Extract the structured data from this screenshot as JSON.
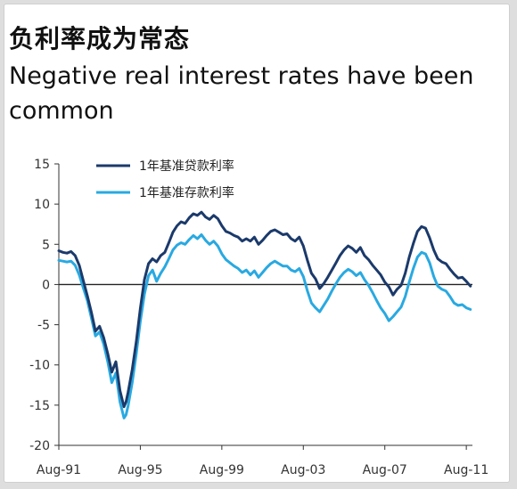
{
  "header": {
    "title_cn": "负利率成为常态",
    "title_en": "Negative real interest rates have been common"
  },
  "chart_data": {
    "type": "line",
    "title": "负利率成为常态",
    "subtitle": "Negative real interest rates have been common",
    "xlabel": "",
    "ylabel": "",
    "ylim": [
      -20,
      15
    ],
    "yticks": [
      15,
      10,
      5,
      0,
      -5,
      -10,
      -15,
      -20
    ],
    "xlim": [
      1991.6,
      2011.9
    ],
    "xticks": [
      {
        "label": "Aug-91",
        "value": 1991.6
      },
      {
        "label": "Aug-95",
        "value": 1995.6
      },
      {
        "label": "Aug-99",
        "value": 1999.6
      },
      {
        "label": "Aug-03",
        "value": 2003.6
      },
      {
        "label": "Aug-07",
        "value": 2007.6
      },
      {
        "label": "Aug-11",
        "value": 2011.6
      }
    ],
    "grid": false,
    "legend_position": "top-left",
    "series": [
      {
        "name": "1年基准贷款利率",
        "color": "#1b3a6b",
        "points": [
          [
            1991.6,
            4.2
          ],
          [
            1991.8,
            4.0
          ],
          [
            1992.0,
            3.9
          ],
          [
            1992.2,
            4.1
          ],
          [
            1992.4,
            3.6
          ],
          [
            1992.6,
            2.4
          ],
          [
            1992.8,
            0.5
          ],
          [
            1993.0,
            -1.4
          ],
          [
            1993.2,
            -3.5
          ],
          [
            1993.4,
            -5.8
          ],
          [
            1993.6,
            -5.2
          ],
          [
            1993.8,
            -6.6
          ],
          [
            1994.0,
            -8.6
          ],
          [
            1994.2,
            -10.9
          ],
          [
            1994.4,
            -9.6
          ],
          [
            1994.6,
            -13.2
          ],
          [
            1994.8,
            -15.2
          ],
          [
            1994.9,
            -14.6
          ],
          [
            1995.0,
            -13.4
          ],
          [
            1995.2,
            -10.6
          ],
          [
            1995.4,
            -7.1
          ],
          [
            1995.6,
            -3.0
          ],
          [
            1995.8,
            0.6
          ],
          [
            1996.0,
            2.6
          ],
          [
            1996.2,
            3.2
          ],
          [
            1996.4,
            2.8
          ],
          [
            1996.6,
            3.6
          ],
          [
            1996.8,
            4.0
          ],
          [
            1997.0,
            5.2
          ],
          [
            1997.2,
            6.5
          ],
          [
            1997.4,
            7.3
          ],
          [
            1997.6,
            7.8
          ],
          [
            1997.8,
            7.6
          ],
          [
            1998.0,
            8.3
          ],
          [
            1998.2,
            8.8
          ],
          [
            1998.4,
            8.6
          ],
          [
            1998.6,
            9.0
          ],
          [
            1998.8,
            8.4
          ],
          [
            1999.0,
            8.1
          ],
          [
            1999.2,
            8.6
          ],
          [
            1999.4,
            8.2
          ],
          [
            1999.6,
            7.3
          ],
          [
            1999.8,
            6.6
          ],
          [
            2000.0,
            6.4
          ],
          [
            2000.2,
            6.1
          ],
          [
            2000.4,
            5.9
          ],
          [
            2000.6,
            5.4
          ],
          [
            2000.8,
            5.7
          ],
          [
            2001.0,
            5.4
          ],
          [
            2001.2,
            5.9
          ],
          [
            2001.4,
            5.0
          ],
          [
            2001.6,
            5.5
          ],
          [
            2001.8,
            6.1
          ],
          [
            2002.0,
            6.6
          ],
          [
            2002.2,
            6.8
          ],
          [
            2002.4,
            6.5
          ],
          [
            2002.6,
            6.2
          ],
          [
            2002.8,
            6.3
          ],
          [
            2003.0,
            5.7
          ],
          [
            2003.2,
            5.4
          ],
          [
            2003.4,
            5.9
          ],
          [
            2003.6,
            4.8
          ],
          [
            2003.8,
            3.0
          ],
          [
            2004.0,
            1.4
          ],
          [
            2004.2,
            0.7
          ],
          [
            2004.4,
            -0.5
          ],
          [
            2004.6,
            0.1
          ],
          [
            2004.8,
            0.9
          ],
          [
            2005.0,
            1.8
          ],
          [
            2005.2,
            2.7
          ],
          [
            2005.4,
            3.6
          ],
          [
            2005.6,
            4.3
          ],
          [
            2005.8,
            4.8
          ],
          [
            2006.0,
            4.5
          ],
          [
            2006.2,
            4.0
          ],
          [
            2006.4,
            4.6
          ],
          [
            2006.6,
            3.6
          ],
          [
            2006.8,
            3.1
          ],
          [
            2007.0,
            2.4
          ],
          [
            2007.2,
            1.8
          ],
          [
            2007.4,
            1.2
          ],
          [
            2007.6,
            0.3
          ],
          [
            2007.8,
            -0.3
          ],
          [
            2008.0,
            -1.3
          ],
          [
            2008.2,
            -0.6
          ],
          [
            2008.4,
            -0.1
          ],
          [
            2008.6,
            1.4
          ],
          [
            2008.8,
            3.4
          ],
          [
            2009.0,
            5.1
          ],
          [
            2009.2,
            6.6
          ],
          [
            2009.4,
            7.2
          ],
          [
            2009.6,
            7.0
          ],
          [
            2009.8,
            5.8
          ],
          [
            2010.0,
            4.3
          ],
          [
            2010.2,
            3.2
          ],
          [
            2010.4,
            2.8
          ],
          [
            2010.6,
            2.6
          ],
          [
            2010.8,
            1.9
          ],
          [
            2011.0,
            1.3
          ],
          [
            2011.2,
            0.8
          ],
          [
            2011.4,
            0.9
          ],
          [
            2011.6,
            0.4
          ],
          [
            2011.8,
            -0.2
          ]
        ]
      },
      {
        "name": "1年基准存款利率",
        "color": "#29a9e1",
        "points": [
          [
            1991.6,
            3.0
          ],
          [
            1991.8,
            2.9
          ],
          [
            1992.0,
            2.8
          ],
          [
            1992.2,
            2.9
          ],
          [
            1992.4,
            2.4
          ],
          [
            1992.6,
            1.2
          ],
          [
            1992.8,
            -0.4
          ],
          [
            1993.0,
            -2.0
          ],
          [
            1993.2,
            -4.2
          ],
          [
            1993.4,
            -6.4
          ],
          [
            1993.6,
            -5.9
          ],
          [
            1993.8,
            -7.4
          ],
          [
            1994.0,
            -9.6
          ],
          [
            1994.2,
            -12.2
          ],
          [
            1994.4,
            -11.0
          ],
          [
            1994.6,
            -14.6
          ],
          [
            1994.8,
            -16.6
          ],
          [
            1994.9,
            -16.2
          ],
          [
            1995.0,
            -15.1
          ],
          [
            1995.2,
            -12.2
          ],
          [
            1995.4,
            -8.6
          ],
          [
            1995.6,
            -4.6
          ],
          [
            1995.8,
            -1.2
          ],
          [
            1996.0,
            1.1
          ],
          [
            1996.2,
            1.8
          ],
          [
            1996.4,
            0.4
          ],
          [
            1996.6,
            1.4
          ],
          [
            1996.8,
            2.2
          ],
          [
            1997.0,
            3.2
          ],
          [
            1997.2,
            4.3
          ],
          [
            1997.4,
            4.9
          ],
          [
            1997.6,
            5.2
          ],
          [
            1997.8,
            5.0
          ],
          [
            1998.0,
            5.6
          ],
          [
            1998.2,
            6.1
          ],
          [
            1998.4,
            5.7
          ],
          [
            1998.6,
            6.2
          ],
          [
            1998.8,
            5.5
          ],
          [
            1999.0,
            5.0
          ],
          [
            1999.2,
            5.4
          ],
          [
            1999.4,
            4.8
          ],
          [
            1999.6,
            3.8
          ],
          [
            1999.8,
            3.1
          ],
          [
            2000.0,
            2.7
          ],
          [
            2000.2,
            2.3
          ],
          [
            2000.4,
            2.0
          ],
          [
            2000.6,
            1.5
          ],
          [
            2000.8,
            1.8
          ],
          [
            2001.0,
            1.2
          ],
          [
            2001.2,
            1.7
          ],
          [
            2001.4,
            0.9
          ],
          [
            2001.6,
            1.5
          ],
          [
            2001.8,
            2.1
          ],
          [
            2002.0,
            2.6
          ],
          [
            2002.2,
            2.9
          ],
          [
            2002.4,
            2.6
          ],
          [
            2002.6,
            2.3
          ],
          [
            2002.8,
            2.3
          ],
          [
            2003.0,
            1.8
          ],
          [
            2003.2,
            1.6
          ],
          [
            2003.4,
            2.0
          ],
          [
            2003.6,
            1.0
          ],
          [
            2003.8,
            -0.8
          ],
          [
            2004.0,
            -2.3
          ],
          [
            2004.2,
            -2.9
          ],
          [
            2004.4,
            -3.4
          ],
          [
            2004.6,
            -2.6
          ],
          [
            2004.8,
            -1.8
          ],
          [
            2005.0,
            -0.8
          ],
          [
            2005.2,
            0.1
          ],
          [
            2005.4,
            0.9
          ],
          [
            2005.6,
            1.5
          ],
          [
            2005.8,
            1.9
          ],
          [
            2006.0,
            1.6
          ],
          [
            2006.2,
            1.1
          ],
          [
            2006.4,
            1.5
          ],
          [
            2006.6,
            0.6
          ],
          [
            2006.8,
            -0.1
          ],
          [
            2007.0,
            -1.0
          ],
          [
            2007.2,
            -2.0
          ],
          [
            2007.4,
            -2.9
          ],
          [
            2007.6,
            -3.6
          ],
          [
            2007.8,
            -4.5
          ],
          [
            2008.0,
            -4.0
          ],
          [
            2008.2,
            -3.4
          ],
          [
            2008.4,
            -2.8
          ],
          [
            2008.6,
            -1.5
          ],
          [
            2008.8,
            0.3
          ],
          [
            2009.0,
            2.0
          ],
          [
            2009.2,
            3.4
          ],
          [
            2009.4,
            4.0
          ],
          [
            2009.6,
            3.8
          ],
          [
            2009.8,
            2.7
          ],
          [
            2010.0,
            1.0
          ],
          [
            2010.2,
            -0.2
          ],
          [
            2010.4,
            -0.6
          ],
          [
            2010.6,
            -0.8
          ],
          [
            2010.8,
            -1.5
          ],
          [
            2011.0,
            -2.3
          ],
          [
            2011.2,
            -2.6
          ],
          [
            2011.4,
            -2.5
          ],
          [
            2011.6,
            -2.9
          ],
          [
            2011.8,
            -3.1
          ]
        ]
      }
    ]
  }
}
